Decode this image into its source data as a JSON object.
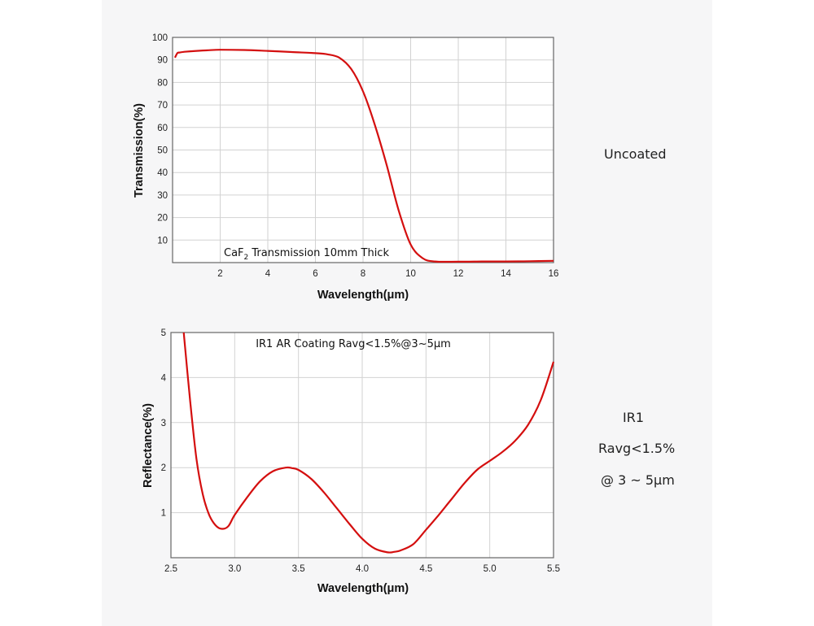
{
  "side_labels": {
    "top": "Uncoated",
    "bottom_line1": "IR1",
    "bottom_line2": "Ravg<1.5%",
    "bottom_line3": "@ 3 ~ 5μm"
  },
  "colors": {
    "curve": "#d40f0f",
    "grid": "#d2d2d2",
    "frame": "#666666",
    "panel": "#f6f6f7"
  },
  "chart_data": [
    {
      "type": "line",
      "annotation": {
        "prefix": "CaF",
        "subscript": "2",
        "suffix": " Transmission 10mm Thick"
      },
      "xlabel": "Wavelength(μm)",
      "ylabel": "Transmission(%)",
      "xlim": [
        0,
        16
      ],
      "ylim": [
        0,
        100
      ],
      "xticks": [
        2,
        4,
        6,
        8,
        10,
        12,
        14,
        16
      ],
      "yticks": [
        10,
        20,
        30,
        40,
        50,
        60,
        70,
        80,
        90,
        100
      ],
      "grid": true,
      "series": [
        {
          "x": [
            0.1,
            0.2,
            0.3,
            0.5,
            1,
            1.5,
            2,
            3,
            4,
            5,
            6,
            6.5,
            7,
            7.5,
            8,
            8.5,
            9,
            9.5,
            10,
            10.5,
            11,
            12,
            13,
            14,
            15,
            16
          ],
          "y": [
            91,
            93,
            93.3,
            93.6,
            94,
            94.3,
            94.5,
            94.4,
            94,
            93.5,
            93,
            92.5,
            91,
            86,
            76,
            61,
            43,
            23,
            8,
            2,
            0.5,
            0.4,
            0.5,
            0.5,
            0.6,
            0.8
          ]
        }
      ]
    },
    {
      "type": "line",
      "annotation": "IR1 AR Coating Ravg<1.5%@3~5μm",
      "xlabel": "Wavelength(μm)",
      "ylabel": "Reflectance(%)",
      "xlim": [
        2.5,
        5.5
      ],
      "ylim": [
        0,
        5
      ],
      "xticks": [
        "2.5",
        "3.0",
        "3.5",
        "4.0",
        "4.5",
        "5.0",
        "5.5"
      ],
      "yticks": [
        1,
        2,
        3,
        4,
        5
      ],
      "grid": true,
      "series": [
        {
          "x": [
            2.6,
            2.65,
            2.7,
            2.75,
            2.8,
            2.85,
            2.9,
            2.95,
            3.0,
            3.1,
            3.2,
            3.3,
            3.4,
            3.45,
            3.5,
            3.6,
            3.7,
            3.8,
            3.9,
            4.0,
            4.1,
            4.2,
            4.25,
            4.3,
            4.4,
            4.5,
            4.6,
            4.7,
            4.8,
            4.9,
            5.0,
            5.1,
            5.2,
            5.3,
            5.4,
            5.5
          ],
          "y": [
            5.0,
            3.5,
            2.2,
            1.4,
            0.95,
            0.72,
            0.64,
            0.7,
            0.95,
            1.35,
            1.7,
            1.92,
            2.0,
            1.99,
            1.95,
            1.75,
            1.45,
            1.1,
            0.75,
            0.42,
            0.2,
            0.12,
            0.13,
            0.16,
            0.3,
            0.62,
            0.95,
            1.3,
            1.65,
            1.95,
            2.15,
            2.35,
            2.6,
            2.95,
            3.5,
            4.35
          ]
        }
      ]
    }
  ]
}
